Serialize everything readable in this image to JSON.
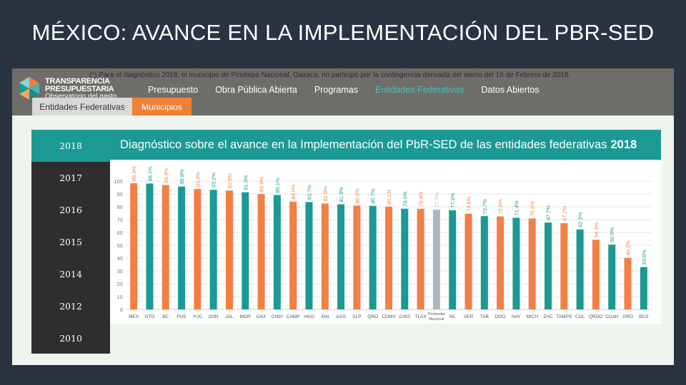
{
  "slide": {
    "title": "MÉXICO: AVANCE EN LA IMPLEMENTACIÓN DEL PBR-SED"
  },
  "app": {
    "footnote": "(*) Para el diagnóstico 2018, el municipio de Pinotepa Nacional, Oaxaca, no participó por la contingencia derivada del sismo del 16 de Febrero de 2018.",
    "logo_line1": "TRANSPARENCIA",
    "logo_line2": "PRESUPUESTARIA",
    "logo_line3": "Observatorio del gasto",
    "nav": [
      {
        "label": "Presupuesto",
        "active": false
      },
      {
        "label": "Obra Pública Abierta",
        "active": false
      },
      {
        "label": "Programas",
        "active": false
      },
      {
        "label": "Entidades Federativas",
        "active": true
      },
      {
        "label": "Datos Abiertos",
        "active": false
      }
    ],
    "subtabs": {
      "entidades": "Entidades Federativas",
      "municipios": "Municipios"
    },
    "years": [
      "2018",
      "2017",
      "2016",
      "2015",
      "2014",
      "2012",
      "2010"
    ],
    "selected_year": "2018",
    "chart_heading": "Diagnóstico sobre el avance en la Implementación del PbR-SED de las entidades federativas",
    "chart_heading_year": "2018"
  },
  "colors": {
    "teal": "#1a9a93",
    "orange": "#f47f45",
    "gray": "#aab8c0",
    "dark": "#2e2e2e"
  },
  "chart_data": {
    "type": "bar",
    "title": "Diagnóstico sobre el avance en la Implementación del PbR-SED de las entidades federativas 2018",
    "ylim": [
      0,
      100
    ],
    "yticks": [
      0,
      10,
      20,
      30,
      40,
      50,
      60,
      70,
      80,
      90,
      100
    ],
    "categories": [
      "MEX",
      "GTO",
      "BC",
      "PUE",
      "YUC",
      "SON",
      "JAL",
      "MOR",
      "OAX",
      "CHIH",
      "CAMP",
      "HGO",
      "SIN",
      "AGS",
      "SLP",
      "QRO",
      "CDMX",
      "CHIS",
      "TLAX",
      "Promedio Nacional",
      "NL",
      "VER",
      "TAB",
      "DGO",
      "NAY",
      "MICH",
      "ZAC",
      "TAMPS",
      "COL",
      "QROO",
      "COAH",
      "GRO",
      "BCS"
    ],
    "values": [
      98.3,
      98.1,
      96.9,
      95.8,
      93.8,
      93.2,
      92.6,
      91.3,
      89.9,
      89.1,
      84.0,
      83.7,
      82.5,
      81.9,
      80.9,
      80.7,
      80.1,
      78.5,
      78.4,
      77.7,
      77.3,
      74.6,
      72.7,
      72.5,
      71.4,
      70.9,
      67.7,
      67.2,
      62.3,
      54.3,
      50.5,
      40.2,
      33.0
    ],
    "labels": [
      "98.3%",
      "98.1%",
      "96.9%",
      "95.8%",
      "93.8%",
      "93.2%",
      "92.6%",
      "91.3%",
      "89.9%",
      "89.1%",
      "84.0%",
      "83.7%",
      "82.5%",
      "81.9%",
      "80.9%",
      "80.7%",
      "80.1%",
      "78.5%",
      "78.4%",
      "77.7%",
      "77.3%",
      "74.6%",
      "72.7%",
      "72.5%",
      "71.4%",
      "70.9%",
      "67.7%",
      "67.2%",
      "62.3%",
      "54.3%",
      "50.5%",
      "40.2%",
      "33.0%"
    ],
    "bar_colors": [
      "orange",
      "teal",
      "orange",
      "teal",
      "orange",
      "teal",
      "orange",
      "teal",
      "orange",
      "teal",
      "orange",
      "teal",
      "orange",
      "teal",
      "orange",
      "teal",
      "orange",
      "teal",
      "orange",
      "gray",
      "teal",
      "orange",
      "teal",
      "orange",
      "teal",
      "orange",
      "teal",
      "orange",
      "teal",
      "orange",
      "teal",
      "orange",
      "teal"
    ],
    "note_category": "Promedio Nacional"
  }
}
